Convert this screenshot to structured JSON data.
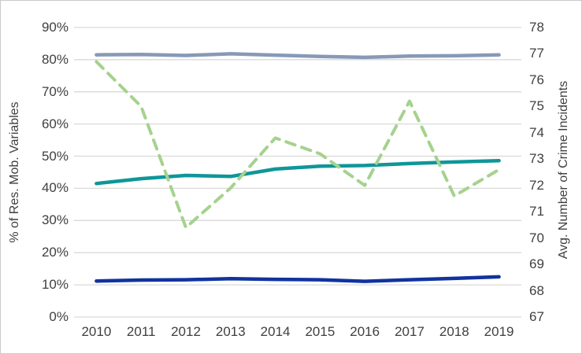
{
  "chart_data": {
    "type": "line",
    "title": "",
    "grid": true,
    "legend_position": "none",
    "x_categories": [
      "2010",
      "2011",
      "2012",
      "2013",
      "2014",
      "2015",
      "2016",
      "2017",
      "2018",
      "2019"
    ],
    "left_axis": {
      "label": "% of Res. Mob. Variables",
      "min": 0,
      "max": 90,
      "step": 10,
      "tick_labels": [
        "90%",
        "80%",
        "70%",
        "60%",
        "50%",
        "40%",
        "30%",
        "20%",
        "10%",
        "0%"
      ]
    },
    "right_axis": {
      "label": "Avg. Number of Crime Incidents",
      "min": 67,
      "max": 78,
      "step": 1,
      "tick_labels": [
        "78",
        "77",
        "76",
        "75",
        "74",
        "73",
        "72",
        "71",
        "70",
        "69",
        "68",
        "67"
      ]
    },
    "series": [
      {
        "name": "blue-gray-line",
        "axis": "left",
        "style": "solid",
        "color": "#8799B6",
        "values": [
          81.5,
          81.6,
          81.3,
          81.8,
          81.4,
          81.0,
          80.7,
          81.1,
          81.2,
          81.5
        ]
      },
      {
        "name": "teal-line",
        "axis": "left",
        "style": "solid",
        "color": "#0F9699",
        "values": [
          41.5,
          43.0,
          44.0,
          43.7,
          46.0,
          46.9,
          47.1,
          47.7,
          48.2,
          48.6
        ]
      },
      {
        "name": "navy-line",
        "axis": "left",
        "style": "solid",
        "color": "#10339E",
        "values": [
          11.2,
          11.5,
          11.6,
          11.9,
          11.7,
          11.6,
          11.1,
          11.6,
          12.0,
          12.5
        ]
      },
      {
        "name": "green-dashed-line",
        "axis": "right",
        "style": "dashed",
        "color": "#A5D28E",
        "values": [
          76.7,
          75.0,
          70.4,
          71.9,
          73.8,
          73.2,
          72.0,
          75.2,
          71.6,
          72.6
        ]
      }
    ],
    "colors": {
      "gridline": "#D9D9D9",
      "tick_text": "#3f3f3f",
      "background": "#ffffff"
    }
  }
}
